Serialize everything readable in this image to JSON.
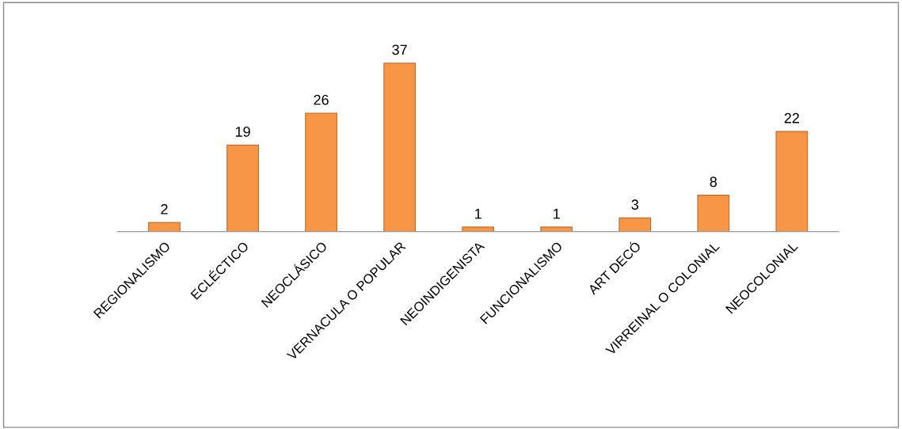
{
  "chart_data": {
    "type": "bar",
    "categories": [
      "REGIONALISMO",
      "ECLÉCTICO",
      "NEOCLÁSICO",
      "VERNACULA O POPULAR",
      "NEOINDIGENISTA",
      "FUNCIONALISMO",
      "ART DECÓ",
      "VIRREINAL O COLONIAL",
      "NEOCOLONIAL"
    ],
    "values": [
      2,
      19,
      26,
      37,
      1,
      1,
      3,
      8,
      22
    ],
    "color": "#f79646",
    "data_labels": true
  }
}
